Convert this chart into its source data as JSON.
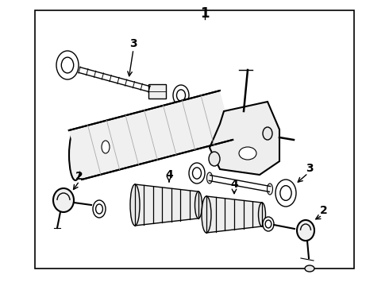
{
  "background_color": "#ffffff",
  "border_color": "#000000",
  "border_linewidth": 1.2,
  "label_color": "#000000",
  "line_color": "#000000",
  "title_fontsize": 12,
  "label_fontsize": 10,
  "border": [
    0.09,
    0.03,
    0.91,
    0.94
  ]
}
